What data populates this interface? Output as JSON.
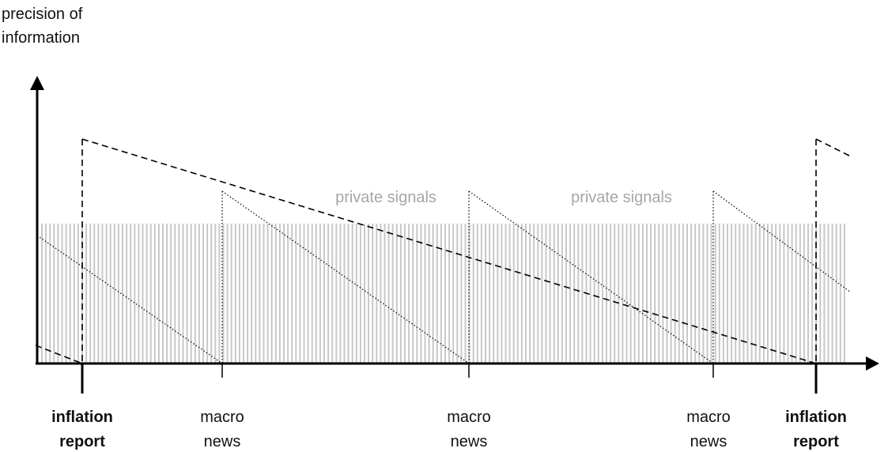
{
  "diagram": {
    "y_axis_title_line1": "precision of",
    "y_axis_title_line2": "information",
    "private_signal_labels": [
      "private signals",
      "private signals"
    ],
    "events": [
      {
        "line1": "inflation",
        "line2": "report",
        "bold": true
      },
      {
        "line1": "macro",
        "line2": "news",
        "bold": false
      },
      {
        "line1": "macro",
        "line2": "news",
        "bold": false
      },
      {
        "line1": "macro",
        "line2": "news",
        "bold": false
      },
      {
        "line1": "inflation",
        "line2": "report",
        "bold": true
      }
    ],
    "colors": {
      "axis": "#000000",
      "private_signal_bars": "#c8c8c8",
      "private_signal_text": "#a6a6a6",
      "inflation_report_line": "#000000",
      "macro_news_line": "#000000"
    },
    "line_styles": {
      "inflation_report": "dashed",
      "macro_news": "dotted"
    }
  }
}
